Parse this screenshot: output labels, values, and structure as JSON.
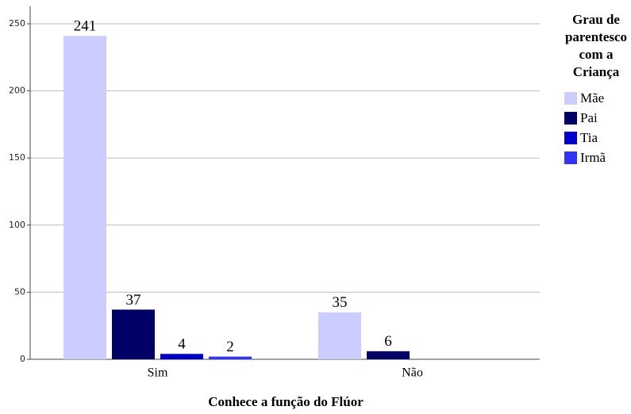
{
  "chart_data": {
    "type": "bar",
    "x_label": "Conhece a função do Flúor",
    "legend_title": [
      "Grau de",
      "parentesco",
      "com a",
      "Criança"
    ],
    "categories": [
      "Sim",
      "Não"
    ],
    "series": [
      {
        "name": "Mãe",
        "color": "#ccccff",
        "values": [
          241,
          35
        ]
      },
      {
        "name": "Pai",
        "color": "#000066",
        "values": [
          37,
          6
        ]
      },
      {
        "name": "Tia",
        "color": "#0000cc",
        "values": [
          4,
          null
        ]
      },
      {
        "name": "Irmã",
        "color": "#3333ff",
        "values": [
          2,
          null
        ]
      }
    ],
    "ylim": [
      0,
      263
    ],
    "yticks": [
      0,
      50,
      100,
      150,
      200,
      250
    ],
    "grid": true,
    "legend": "right"
  }
}
